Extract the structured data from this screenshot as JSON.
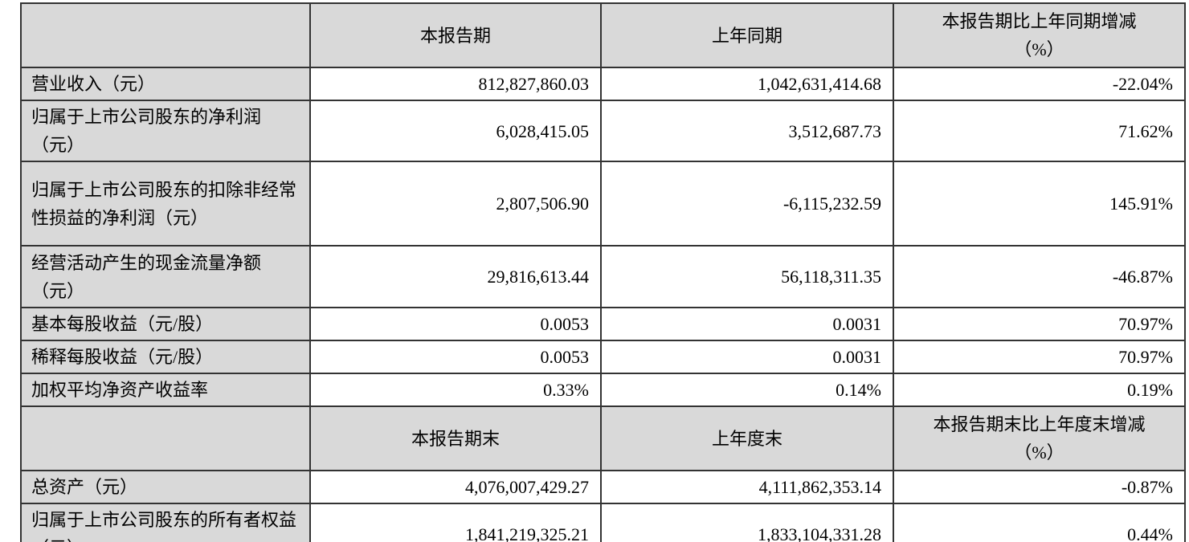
{
  "colors": {
    "header_bg": "#d9d9d9",
    "label_bg": "#d9d9d9",
    "border": "#333333",
    "cell_bg": "#ffffff",
    "text": "#000000"
  },
  "table": {
    "period_header": {
      "corner": "",
      "current": "本报告期",
      "prior": "上年同期",
      "change_line1": "本报告期比上年同期增减",
      "change_line2": "（%）"
    },
    "period_rows": [
      {
        "label": "营业收入（元）",
        "current": "812,827,860.03",
        "prior": "1,042,631,414.68",
        "change": "-22.04%"
      },
      {
        "label": "归属于上市公司股东的净利润（元）",
        "current": "6,028,415.05",
        "prior": "3,512,687.73",
        "change": "71.62%"
      },
      {
        "label": "归属于上市公司股东的扣除非经常性损益的净利润（元）",
        "current": "2,807,506.90",
        "prior": "-6,115,232.59",
        "change": "145.91%"
      },
      {
        "label": "经营活动产生的现金流量净额（元）",
        "current": "29,816,613.44",
        "prior": "56,118,311.35",
        "change": "-46.87%"
      },
      {
        "label": "基本每股收益（元/股）",
        "current": "0.0053",
        "prior": "0.0031",
        "change": "70.97%"
      },
      {
        "label": "稀释每股收益（元/股）",
        "current": "0.0053",
        "prior": "0.0031",
        "change": "70.97%"
      },
      {
        "label": "加权平均净资产收益率",
        "current": "0.33%",
        "prior": "0.14%",
        "change": "0.19%"
      }
    ],
    "yearend_header": {
      "corner": "",
      "current": "本报告期末",
      "prior": "上年度末",
      "change_line1": "本报告期末比上年度末增减",
      "change_line2": "（%）"
    },
    "yearend_rows": [
      {
        "label": "总资产（元）",
        "current": "4,076,007,429.27",
        "prior": "4,111,862,353.14",
        "change": "-0.87%"
      },
      {
        "label": "归属于上市公司股东的所有者权益（元）",
        "current": "1,841,219,325.21",
        "prior": "1,833,104,331.28",
        "change": "0.44%"
      }
    ]
  }
}
